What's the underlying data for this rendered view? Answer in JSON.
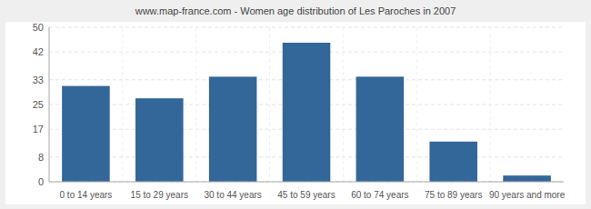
{
  "chart_data": {
    "type": "bar",
    "title": "www.map-france.com - Women age distribution of Les Paroches in 2007",
    "categories": [
      "0 to 14 years",
      "15 to 29 years",
      "30 to 44 years",
      "45 to 59 years",
      "60 to 74 years",
      "75 to 89 years",
      "90 years and more"
    ],
    "values": [
      31,
      27,
      34,
      45,
      34,
      13,
      2
    ],
    "color": "#336699",
    "ylim": [
      0,
      50
    ],
    "yticks": [
      0,
      8,
      17,
      25,
      33,
      42,
      50
    ],
    "grid": true
  }
}
